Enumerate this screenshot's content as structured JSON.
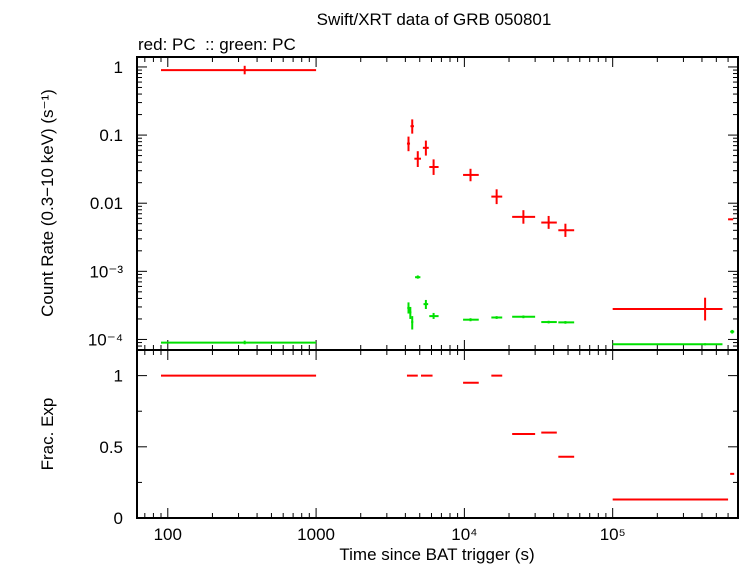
{
  "chart_data": [
    {
      "type": "scatter",
      "title": "Swift/XRT data of GRB 050801",
      "subtitle": "red: PC  :: green: PC",
      "ylabel": "Count Rate (0.3−10 keV) (s⁻¹)",
      "xlabel": "",
      "xscale": "log",
      "yscale": "log",
      "xlim": [
        62,
        700000
      ],
      "ylim": [
        7e-05,
        1.4
      ],
      "grid": false,
      "y_tick_labels": [
        "1",
        "0.1",
        "0.01",
        "10⁻³",
        "10⁻⁴"
      ],
      "series": [
        {
          "name": "red: PC",
          "color": "#ff0000",
          "points": [
            {
              "x": 330,
              "y": 0.9,
              "xlo": 90,
              "xhi": 1000,
              "ylo": 0.78,
              "yhi": 1.04
            },
            {
              "x": 4200,
              "y": 0.075,
              "xlo": 4100,
              "xhi": 4300,
              "ylo": 0.058,
              "yhi": 0.095
            },
            {
              "x": 4450,
              "y": 0.135,
              "xlo": 4330,
              "xhi": 4570,
              "ylo": 0.105,
              "yhi": 0.17
            },
            {
              "x": 4850,
              "y": 0.045,
              "xlo": 4600,
              "xhi": 5100,
              "ylo": 0.034,
              "yhi": 0.058
            },
            {
              "x": 5500,
              "y": 0.065,
              "xlo": 5250,
              "xhi": 5750,
              "ylo": 0.05,
              "yhi": 0.083
            },
            {
              "x": 6200,
              "y": 0.034,
              "xlo": 5800,
              "xhi": 6700,
              "ylo": 0.026,
              "yhi": 0.044
            },
            {
              "x": 11000,
              "y": 0.026,
              "xlo": 9800,
              "xhi": 12500,
              "ylo": 0.021,
              "yhi": 0.032
            },
            {
              "x": 16500,
              "y": 0.0125,
              "xlo": 15200,
              "xhi": 18000,
              "ylo": 0.0097,
              "yhi": 0.016
            },
            {
              "x": 25000,
              "y": 0.0063,
              "xlo": 21000,
              "xhi": 30000,
              "ylo": 0.005,
              "yhi": 0.0079
            },
            {
              "x": 37000,
              "y": 0.0052,
              "xlo": 33000,
              "xhi": 42000,
              "ylo": 0.0042,
              "yhi": 0.0065
            },
            {
              "x": 48000,
              "y": 0.004,
              "xlo": 43000,
              "xhi": 55000,
              "ylo": 0.0032,
              "yhi": 0.005
            },
            {
              "x": 420000,
              "y": 0.00028,
              "xlo": 100000,
              "xhi": 550000,
              "ylo": 0.00019,
              "yhi": 0.00041
            },
            {
              "x": 620000,
              "y": 0.0058,
              "xlo": 600000,
              "xhi": 650000,
              "ylo": 0.0058,
              "yhi": 0.0058
            }
          ]
        },
        {
          "name": "green: PC",
          "color": "#00e000",
          "points": [
            {
              "x": 330,
              "y": 9e-05,
              "xlo": 90,
              "xhi": 1000,
              "ylo": 8.5e-05,
              "yhi": 9.6e-05
            },
            {
              "x": 4200,
              "y": 0.00029,
              "xlo": 4120,
              "xhi": 4280,
              "ylo": 0.00024,
              "yhi": 0.00035
            },
            {
              "x": 4320,
              "y": 0.00025,
              "xlo": 4250,
              "xhi": 4390,
              "ylo": 0.0002,
              "yhi": 0.0003
            },
            {
              "x": 4450,
              "y": 0.00018,
              "xlo": 4380,
              "xhi": 4520,
              "ylo": 0.00014,
              "yhi": 0.00022
            },
            {
              "x": 4850,
              "y": 0.00082,
              "xlo": 4650,
              "xhi": 5050,
              "ylo": 0.00078,
              "yhi": 0.00087
            },
            {
              "x": 5500,
              "y": 0.00033,
              "xlo": 5300,
              "xhi": 5700,
              "ylo": 0.00028,
              "yhi": 0.00038
            },
            {
              "x": 6200,
              "y": 0.00022,
              "xlo": 5800,
              "xhi": 6700,
              "ylo": 0.0002,
              "yhi": 0.000245
            },
            {
              "x": 11000,
              "y": 0.000195,
              "xlo": 9800,
              "xhi": 12500,
              "ylo": 0.000185,
              "yhi": 0.000205
            },
            {
              "x": 16500,
              "y": 0.00021,
              "xlo": 15200,
              "xhi": 18000,
              "ylo": 0.0002,
              "yhi": 0.00022
            },
            {
              "x": 25000,
              "y": 0.000215,
              "xlo": 21000,
              "xhi": 30000,
              "ylo": 0.000205,
              "yhi": 0.000225
            },
            {
              "x": 37000,
              "y": 0.00018,
              "xlo": 33000,
              "xhi": 42000,
              "ylo": 0.000172,
              "yhi": 0.000188
            },
            {
              "x": 48000,
              "y": 0.000178,
              "xlo": 43000,
              "xhi": 55000,
              "ylo": 0.00017,
              "yhi": 0.000186
            },
            {
              "x": 420000,
              "y": 8.5e-05,
              "xlo": 100000,
              "xhi": 550000,
              "ylo": 8.2e-05,
              "yhi": 8.8e-05
            },
            {
              "x": 640000,
              "y": 0.00013,
              "xlo": 620000,
              "xhi": 660000,
              "ylo": 0.000122,
              "yhi": 0.000138
            }
          ]
        }
      ]
    },
    {
      "type": "scatter",
      "ylabel": "Frac. Exp",
      "xlabel": "Time since BAT trigger (s)",
      "xscale": "log",
      "yscale": "linear",
      "xlim": [
        62,
        700000
      ],
      "ylim": [
        0,
        1.18
      ],
      "y_ticks": [
        0,
        0.5,
        1
      ],
      "y_tick_labels": [
        "0",
        "0.5",
        "1"
      ],
      "x_tick_labels": [
        "100",
        "1000",
        "10⁴",
        "10⁵"
      ],
      "grid": false,
      "series": [
        {
          "color": "#ff0000",
          "points": [
            {
              "x": 330,
              "y": 1.0,
              "xlo": 90,
              "xhi": 1000
            },
            {
              "x": 4450,
              "y": 1.0,
              "xlo": 4100,
              "xhi": 4850
            },
            {
              "x": 5500,
              "y": 1.0,
              "xlo": 5100,
              "xhi": 6100
            },
            {
              "x": 11000,
              "y": 0.95,
              "xlo": 9800,
              "xhi": 12500
            },
            {
              "x": 16500,
              "y": 1.0,
              "xlo": 15200,
              "xhi": 18000
            },
            {
              "x": 25000,
              "y": 0.59,
              "xlo": 21000,
              "xhi": 30000
            },
            {
              "x": 37000,
              "y": 0.6,
              "xlo": 33000,
              "xhi": 42000
            },
            {
              "x": 48000,
              "y": 0.43,
              "xlo": 43000,
              "xhi": 55000
            },
            {
              "x": 300000,
              "y": 0.13,
              "xlo": 100000,
              "xhi": 600000
            },
            {
              "x": 640000,
              "y": 0.31,
              "xlo": 620000,
              "xhi": 660000
            }
          ]
        }
      ]
    }
  ]
}
